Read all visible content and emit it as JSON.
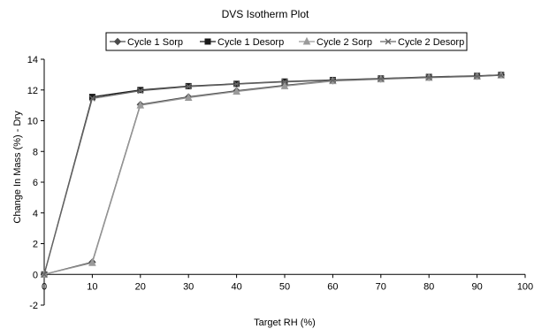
{
  "chart_data": {
    "type": "line",
    "title": "DVS Isotherm Plot",
    "xlabel": "Target RH (%)",
    "ylabel": "Change In Mass (%) - Dry",
    "xlim": [
      0,
      100
    ],
    "ylim": [
      -2,
      14
    ],
    "xticks": [
      0,
      10,
      20,
      30,
      40,
      50,
      60,
      70,
      80,
      90,
      100
    ],
    "yticks": [
      -2,
      0,
      2,
      4,
      6,
      8,
      10,
      12,
      14
    ],
    "grid": false,
    "legend_position": "top",
    "series": [
      {
        "name": "Cycle 1 Sorp",
        "marker": "diamond",
        "color": "#4a4a4a",
        "x": [
          0,
          10,
          20,
          30,
          40,
          50,
          60,
          70,
          80,
          90,
          95
        ],
        "y": [
          0,
          0.8,
          11.05,
          11.55,
          11.95,
          12.3,
          12.6,
          12.72,
          12.82,
          12.9,
          12.98
        ]
      },
      {
        "name": "Cycle 1 Desorp",
        "marker": "square",
        "color": "#1a1a1a",
        "x": [
          95,
          90,
          80,
          70,
          60,
          50,
          40,
          30,
          20,
          10,
          0
        ],
        "y": [
          12.98,
          12.92,
          12.85,
          12.75,
          12.65,
          12.55,
          12.4,
          12.25,
          12.0,
          11.55,
          0
        ]
      },
      {
        "name": "Cycle 2 Sorp",
        "marker": "triangle",
        "color": "#9a9a9a",
        "x": [
          0,
          10,
          20,
          30,
          40,
          50,
          60,
          70,
          80,
          90,
          95
        ],
        "y": [
          0,
          0.75,
          11.0,
          11.5,
          11.9,
          12.25,
          12.58,
          12.7,
          12.8,
          12.88,
          12.96
        ]
      },
      {
        "name": "Cycle 2 Desorp",
        "marker": "x",
        "color": "#666666",
        "x": [
          95,
          90,
          80,
          70,
          60,
          50,
          40,
          30,
          20,
          10,
          0
        ],
        "y": [
          12.96,
          12.9,
          12.83,
          12.73,
          12.63,
          12.53,
          12.38,
          12.22,
          11.95,
          11.45,
          0
        ]
      }
    ]
  }
}
